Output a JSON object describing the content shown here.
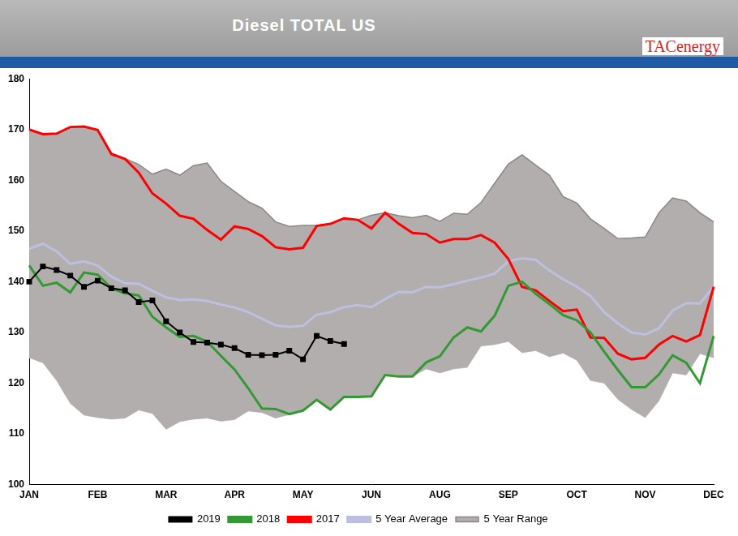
{
  "chart_data": {
    "type": "line",
    "title": "Diesel TOTAL US",
    "source_logo": "TACenergy",
    "categories": [
      "JAN",
      null,
      null,
      null,
      null,
      "FEB",
      null,
      null,
      null,
      null,
      "MAR",
      null,
      null,
      null,
      null,
      "APR",
      null,
      null,
      null,
      null,
      "MAY",
      null,
      null,
      null,
      null,
      "JUN",
      null,
      null,
      null,
      null,
      "AUG",
      null,
      null,
      null,
      null,
      "SEP",
      null,
      null,
      null,
      null,
      "OCT",
      null,
      null,
      null,
      null,
      "NOV",
      null,
      null,
      null,
      null,
      "DEC"
    ],
    "ylim": [
      100,
      180
    ],
    "yticks": [
      100,
      110,
      120,
      130,
      140,
      150,
      160,
      170,
      180
    ],
    "grid": false,
    "legend": "bottom",
    "series": [
      {
        "name": "5 Year Range",
        "type": "range",
        "color": "#b3aeae",
        "low": [
          125,
          124,
          120.5,
          116,
          113.7,
          113.2,
          112.9,
          113.1,
          114.7,
          114,
          110.9,
          112.4,
          112.9,
          113.1,
          112.5,
          112.8,
          114.5,
          114.2,
          113.1,
          113.8,
          114.6,
          116.7,
          114.8,
          117.3,
          117.3,
          117.4,
          121.6,
          121.3,
          121.3,
          122.8,
          122,
          122.8,
          123.1,
          127.3,
          127.6,
          128.2,
          126,
          126.4,
          125.2,
          125.9,
          124.5,
          120.5,
          120,
          116.8,
          114.8,
          113.2,
          116.5,
          122,
          121.6,
          125.8,
          125
        ],
        "high": [
          170,
          169.1,
          169.2,
          170.5,
          170.6,
          169.9,
          164.9,
          164.3,
          163.1,
          161.2,
          162.2,
          161,
          162.9,
          163.4,
          159.8,
          157.8,
          155.8,
          154.5,
          151.8,
          150.9,
          151.1,
          151.1,
          151.4,
          152.5,
          152.2,
          153.1,
          153.6,
          153,
          152.6,
          153.1,
          151.9,
          153.5,
          153.3,
          155.6,
          159.4,
          163.2,
          165,
          163,
          161,
          156.8,
          155.5,
          152.4,
          150.5,
          148.5,
          148.6,
          148.8,
          153.6,
          156.5,
          155.9,
          153.6,
          151.8
        ]
      },
      {
        "name": "5 Year Average",
        "color": "#bcbfe0",
        "marker": "none",
        "line_style": "solid",
        "values": [
          146.5,
          147.5,
          146,
          143.5,
          144,
          143.2,
          141,
          139.7,
          139.6,
          138.2,
          136.9,
          136.4,
          136.5,
          136.2,
          135.5,
          134.9,
          134,
          132.7,
          131.4,
          131.1,
          131.3,
          133.5,
          134,
          135,
          135.4,
          135,
          136.6,
          138,
          137.9,
          139,
          138.9,
          139.5,
          140.2,
          140.8,
          141.6,
          144,
          144.6,
          144.3,
          142.2,
          140.5,
          139,
          137.2,
          134,
          131.8,
          130,
          129.6,
          130.8,
          134.3,
          135.8,
          135.7,
          139
        ]
      },
      {
        "name": "2017",
        "color": "#ff0000",
        "marker": "none",
        "line_style": "solid",
        "values": [
          170,
          169.1,
          169.2,
          170.5,
          170.6,
          169.9,
          165.2,
          164.2,
          161.5,
          157.4,
          155.4,
          153,
          152.4,
          150.2,
          148.3,
          150.9,
          150.4,
          149,
          146.8,
          146.4,
          146.7,
          151,
          151.4,
          152.5,
          152.2,
          150.5,
          153.6,
          151.4,
          149.6,
          149.4,
          147.7,
          148.4,
          148.4,
          149.2,
          147.7,
          144.5,
          139,
          138.3,
          136.2,
          134.2,
          134.5,
          129,
          128.9,
          125.8,
          124.7,
          125,
          127.6,
          129.3,
          128.2,
          129.5,
          139
        ]
      },
      {
        "name": "2018",
        "color": "#339933",
        "marker": "none",
        "line_style": "solid",
        "values": [
          143.2,
          139.2,
          139.8,
          137.9,
          141.8,
          141.4,
          138.7,
          137.7,
          137.3,
          133.1,
          131,
          129.1,
          129.3,
          128.2,
          125.4,
          122.7,
          119,
          115,
          114.9,
          113.9,
          114.6,
          116.7,
          114.8,
          117.3,
          117.3,
          117.4,
          121.6,
          121.3,
          121.3,
          124.1,
          125.3,
          129,
          131,
          130.2,
          133.3,
          139.2,
          140,
          137.6,
          135.6,
          133.4,
          132.4,
          130,
          126.2,
          122.6,
          119.2,
          119.2,
          121.7,
          125.5,
          124,
          120,
          129.3
        ]
      },
      {
        "name": "2019",
        "color": "#000000",
        "marker": "square",
        "line_style": "solid",
        "values": [
          140,
          143,
          142.3,
          141.2,
          139,
          140.2,
          138.7,
          138.3,
          136,
          136.3,
          132.2,
          130,
          128.1,
          128,
          127.6,
          126.9,
          125.6,
          125.5,
          125.6,
          126.4,
          124.7,
          129.3,
          128.3,
          127.7,
          null,
          null,
          null,
          null,
          null,
          null,
          null,
          null,
          null,
          null,
          null,
          null,
          null,
          null,
          null,
          null,
          null,
          null,
          null,
          null,
          null,
          null,
          null,
          null,
          null,
          null,
          null
        ]
      }
    ]
  }
}
